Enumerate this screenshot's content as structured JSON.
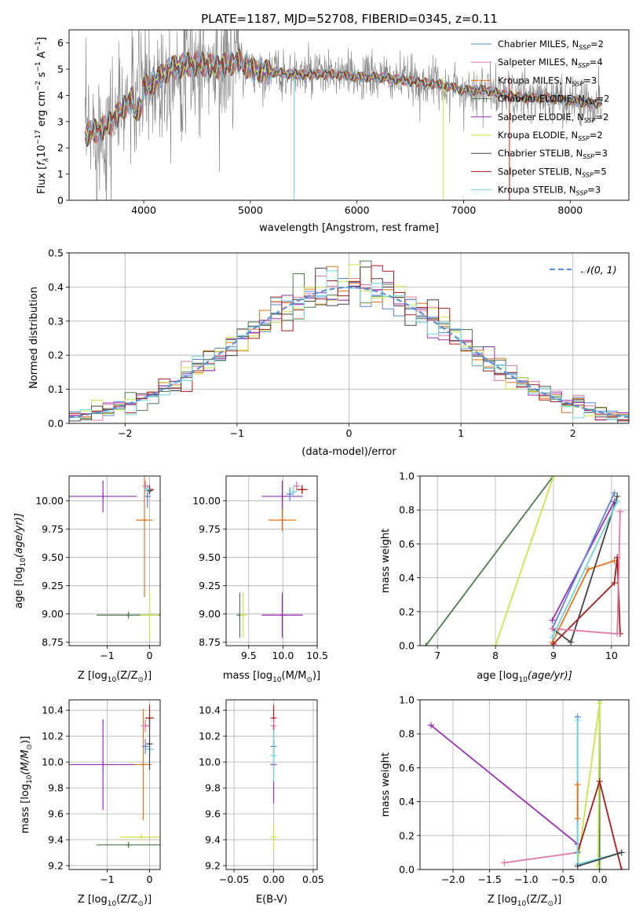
{
  "figure": {
    "title": "PLATE=1187, MJD=52708, FIBERID=0345, z=0.11"
  },
  "colors": {
    "Chabrier MILES": "#5b84d6",
    "Salpeter MILES": "#e377a8",
    "Kroupa MILES": "#e8751a",
    "Chabrier ELODIE": "#4f7a4f",
    "Salpeter ELODIE": "#9a2fb8",
    "Kroupa ELODIE": "#c8e64a",
    "Chabrier STELIB": "#444444",
    "Salpeter STELIB": "#a81c1c",
    "Kroupa STELIB": "#6fd6dc",
    "data": "#808080",
    "normal": "#5b8fd6"
  },
  "chart_data": [
    {
      "type": "line",
      "id": "spectrum",
      "xlabel": "wavelength [Angstrom, rest frame]",
      "ylabel_parts": [
        "Flux [",
        "f",
        "λ",
        "10",
        "−17",
        " erg cm",
        "−2",
        " s",
        "−1",
        " A",
        "−1",
        "]"
      ],
      "xlim": [
        3300,
        8550
      ],
      "ylim": [
        0,
        6.5
      ],
      "xticks": [
        4000,
        5000,
        6000,
        7000,
        8000
      ],
      "yticks": [
        0,
        1,
        2,
        3,
        4,
        5,
        6
      ],
      "legend_position": "top-right",
      "legend": [
        {
          "name": "Chabrier MILES",
          "n": "2"
        },
        {
          "name": "Salpeter MILES",
          "n": "4"
        },
        {
          "name": "Kroupa MILES",
          "n": "3"
        },
        {
          "name": "Chabrier ELODIE",
          "n": "2"
        },
        {
          "name": "Salpeter ELODIE",
          "n": "2"
        },
        {
          "name": "Kroupa ELODIE",
          "n": "2"
        },
        {
          "name": "Chabrier STELIB",
          "n": "3"
        },
        {
          "name": "Salpeter STELIB",
          "n": "5"
        },
        {
          "name": "Kroupa STELIB",
          "n": "3"
        }
      ],
      "nssp_label": "N",
      "nssp_sub": "SSP",
      "model_continuum": {
        "x": [
          3450,
          3600,
          3700,
          3800,
          3900,
          4000,
          4100,
          4200,
          4300,
          4500,
          4700,
          4900,
          5000,
          5200,
          5400,
          5600,
          5800,
          6000,
          6200,
          6400,
          6600,
          6800,
          7000,
          7200,
          7400,
          7600,
          7800,
          8000,
          8200,
          8300
        ],
        "y": [
          2.5,
          2.7,
          3.0,
          3.5,
          3.9,
          4.3,
          4.5,
          4.9,
          5.1,
          5.2,
          5.1,
          5.3,
          5.0,
          4.9,
          4.8,
          4.8,
          4.8,
          4.7,
          4.7,
          4.6,
          4.5,
          4.4,
          4.2,
          4.2,
          4.0,
          3.9,
          3.9,
          3.8,
          3.7,
          3.7
        ]
      }
    },
    {
      "type": "histogram",
      "id": "residuals",
      "xlabel": "(data-model)/error",
      "ylabel": "Normed distribution",
      "xlim": [
        -2.5,
        2.5
      ],
      "ylim": [
        0,
        0.5
      ],
      "xticks": [
        -2,
        -1,
        0,
        1,
        2
      ],
      "yticks": [
        0.0,
        0.1,
        0.2,
        0.3,
        0.4,
        0.5
      ],
      "bin_width": 0.1,
      "overlay_label": "𝒩(0, 1)",
      "overlay": "normal(0,1)"
    },
    {
      "type": "scatter",
      "id": "age_vs_Z",
      "xlabel_parts": [
        "Z [log",
        "10",
        "(Z/Z",
        "⊙",
        ")]"
      ],
      "ylabel_parts": [
        "age  [log",
        "10",
        "(age/yr)]"
      ],
      "xlim": [
        -1.9,
        0.25
      ],
      "ylim": [
        8.72,
        10.22
      ],
      "xticks": [
        -1,
        0
      ],
      "yticks": [
        8.75,
        9.0,
        9.25,
        9.5,
        9.75,
        10.0
      ],
      "points": [
        {
          "model": "Salpeter ELODIE",
          "x": -1.1,
          "xerr": 0.8,
          "y": 10.04,
          "yerr": 0.14
        },
        {
          "model": "Kroupa MILES",
          "x": -0.12,
          "xerr": 0.2,
          "y": 9.83,
          "yerr": 0.68
        },
        {
          "model": "Chabrier ELODIE",
          "x": -0.5,
          "xerr": 0.75,
          "y": 8.99,
          "yerr": 0.03
        },
        {
          "model": "Kroupa ELODIE",
          "x": 0.0,
          "xerr": 0.22,
          "y": 8.99,
          "yerr": 0.22
        },
        {
          "model": "Salpeter MILES",
          "x": -0.1,
          "xerr": 0.07,
          "y": 10.13,
          "yerr": 0.05
        },
        {
          "model": "Chabrier MILES",
          "x": -0.05,
          "xerr": 0.08,
          "y": 10.04,
          "yerr": 0.1
        },
        {
          "model": "Salpeter STELIB",
          "x": 0.0,
          "xerr": 0.1,
          "y": 10.1,
          "yerr": 0.04
        },
        {
          "model": "Chabrier STELIB",
          "x": 0.0,
          "xerr": 0.05,
          "y": 10.09,
          "yerr": 0.03
        },
        {
          "model": "Kroupa STELIB",
          "x": -0.06,
          "xerr": 0.05,
          "y": 10.1,
          "yerr": 0.03
        }
      ]
    },
    {
      "type": "scatter",
      "id": "age_vs_mass",
      "xlabel_parts": [
        "mass [log",
        "10",
        "(M/M",
        "⊙",
        ")]"
      ],
      "ylabel_parts": [],
      "xlim": [
        9.17,
        10.5
      ],
      "ylim": [
        8.72,
        10.22
      ],
      "xticks": [
        9.5,
        10.0,
        10.5
      ],
      "yticks": [
        8.75,
        9.0,
        9.25,
        9.5,
        9.75,
        10.0
      ],
      "points": [
        {
          "model": "Salpeter ELODIE",
          "x": 9.99,
          "xerr": 0.3,
          "y": 10.04,
          "yerr": 0.14
        },
        {
          "model": "Kroupa MILES",
          "x": 9.99,
          "xerr": 0.2,
          "y": 9.83,
          "yerr": 0.1
        },
        {
          "model": "Chabrier ELODIE",
          "x": 9.37,
          "xerr": 0.02,
          "y": 8.99,
          "yerr": 0.2
        },
        {
          "model": "Kroupa ELODIE",
          "x": 9.42,
          "xerr": 0.02,
          "y": 8.99,
          "yerr": 0.2
        },
        {
          "model": "Salpeter ELODIE",
          "x": 9.99,
          "xerr": 0.3,
          "y": 8.99,
          "yerr": 0.2
        },
        {
          "model": "Salpeter MILES",
          "x": 10.2,
          "xerr": 0.05,
          "y": 10.13,
          "yerr": 0.04
        },
        {
          "model": "Chabrier MILES",
          "x": 10.1,
          "xerr": 0.05,
          "y": 10.06,
          "yerr": 0.06
        },
        {
          "model": "Salpeter STELIB",
          "x": 10.28,
          "xerr": 0.08,
          "y": 10.1,
          "yerr": 0.04
        },
        {
          "model": "Kroupa STELIB",
          "x": 10.15,
          "xerr": 0.05,
          "y": 10.08,
          "yerr": 0.05
        }
      ]
    },
    {
      "type": "line",
      "id": "massweight_vs_age",
      "xlabel_parts": [
        "age  [log",
        "10",
        "(age/yr)]"
      ],
      "ylabel": "mass weight",
      "xlim": [
        6.7,
        10.3
      ],
      "ylim": [
        0,
        1.0
      ],
      "xticks": [
        7,
        8,
        9,
        10
      ],
      "yticks": [
        0.0,
        0.2,
        0.4,
        0.6,
        0.8,
        1.0
      ],
      "series": [
        {
          "model": "Chabrier ELODIE",
          "x": [
            6.8,
            9.0
          ],
          "y": [
            0.0,
            1.0
          ]
        },
        {
          "model": "Kroupa ELODIE",
          "x": [
            8.0,
            9.0
          ],
          "y": [
            0.0,
            1.0
          ]
        },
        {
          "model": "Salpeter ELODIE",
          "x": [
            8.98,
            10.05
          ],
          "y": [
            0.15,
            0.85
          ]
        },
        {
          "model": "Chabrier MILES",
          "x": [
            8.98,
            10.05
          ],
          "y": [
            0.1,
            0.9
          ]
        },
        {
          "model": "Kroupa MILES",
          "x": [
            8.98,
            9.6,
            10.05
          ],
          "y": [
            0.02,
            0.45,
            0.5
          ]
        },
        {
          "model": "Chabrier STELIB",
          "x": [
            8.98,
            9.3,
            10.1
          ],
          "y": [
            0.1,
            0.02,
            0.88
          ]
        },
        {
          "model": "Salpeter STELIB",
          "x": [
            9.0,
            10.05,
            10.1,
            10.15
          ],
          "y": [
            0.01,
            0.37,
            0.52,
            0.07
          ]
        },
        {
          "model": "Salpeter MILES",
          "x": [
            8.98,
            10.1,
            10.15
          ],
          "y": [
            0.1,
            0.07,
            0.79
          ]
        },
        {
          "model": "Kroupa STELIB",
          "x": [
            8.98,
            10.1
          ],
          "y": [
            0.05,
            0.85
          ]
        }
      ]
    },
    {
      "type": "scatter",
      "id": "mass_vs_Z",
      "xlabel_parts": [
        "Z [log",
        "10",
        "(Z/Z",
        "⊙",
        ")]"
      ],
      "ylabel_parts": [
        "mass [log",
        "10",
        "(M/M",
        "⊙",
        ")]"
      ],
      "xlim": [
        -1.9,
        0.25
      ],
      "ylim": [
        9.17,
        10.48
      ],
      "xticks": [
        -1,
        0
      ],
      "yticks": [
        9.2,
        9.4,
        9.6,
        9.8,
        10.0,
        10.2,
        10.4
      ],
      "points": [
        {
          "model": "Salpeter ELODIE",
          "x": -1.1,
          "xerr": 0.8,
          "y": 9.98,
          "yerr": 0.35
        },
        {
          "model": "Kroupa MILES",
          "x": -0.15,
          "xerr": 0.2,
          "y": 9.98,
          "yerr": 0.43
        },
        {
          "model": "Chabrier ELODIE",
          "x": -0.5,
          "xerr": 0.75,
          "y": 9.36,
          "yerr": 0.02
        },
        {
          "model": "Kroupa ELODIE",
          "x": -0.2,
          "xerr": 0.5,
          "y": 9.42,
          "yerr": 0.02
        },
        {
          "model": "Salpeter MILES",
          "x": -0.1,
          "xerr": 0.1,
          "y": 10.28,
          "yerr": 0.05
        },
        {
          "model": "Salpeter STELIB",
          "x": 0.0,
          "xerr": 0.1,
          "y": 10.34,
          "yerr": 0.1
        },
        {
          "model": "Chabrier MILES",
          "x": -0.1,
          "xerr": 0.05,
          "y": 10.12,
          "yerr": 0.06
        },
        {
          "model": "Kroupa STELIB",
          "x": 0.0,
          "xerr": 0.1,
          "y": 10.1,
          "yerr": 0.05
        },
        {
          "model": "Chabrier STELIB",
          "x": 0.0,
          "xerr": 0.05,
          "y": 10.14,
          "yerr": 0.2
        }
      ]
    },
    {
      "type": "scatter",
      "id": "mass_vs_ebv",
      "xlabel": "E(B-V)",
      "xlim": [
        -0.06,
        0.055
      ],
      "ylim": [
        9.17,
        10.48
      ],
      "xticks": [
        -0.05,
        0.0,
        0.05
      ],
      "xtick_labels": [
        "−0.05",
        "0.00",
        "0.05"
      ],
      "yticks": [
        9.2,
        9.4,
        9.6,
        9.8,
        10.0,
        10.2,
        10.4
      ],
      "points": [
        {
          "model": "Salpeter STELIB",
          "x": 0.0,
          "y": 10.34,
          "yerr": 0.1
        },
        {
          "model": "Salpeter MILES",
          "x": 0.0,
          "y": 10.28,
          "yerr": 0.05
        },
        {
          "model": "Chabrier MILES",
          "x": 0.0,
          "y": 10.12,
          "yerr": 0.06
        },
        {
          "model": "Salpeter ELODIE",
          "x": 0.0,
          "y": 9.98,
          "yerr": 0.3
        },
        {
          "model": "Kroupa STELIB",
          "x": 0.0,
          "y": 10.05,
          "yerr": 0.2
        },
        {
          "model": "Kroupa ELODIE",
          "x": 0.0,
          "y": 9.42,
          "yerr": 0.1
        }
      ]
    },
    {
      "type": "line",
      "id": "massweight_vs_Z",
      "xlabel_parts": [
        "Z [log",
        "10",
        "(Z/Z",
        "⊙",
        ")]"
      ],
      "ylabel": "mass weight",
      "xlim": [
        -2.45,
        0.4
      ],
      "ylim": [
        0,
        1.0
      ],
      "xticks": [
        -2.0,
        -1.5,
        -1.0,
        -0.5,
        0.0
      ],
      "xtick_labels": [
        "−2.0",
        "−1.5",
        "−1.0",
        "−0.5",
        "0.0"
      ],
      "yticks": [
        0.0,
        0.2,
        0.4,
        0.6,
        0.8,
        1.0
      ],
      "series": [
        {
          "model": "Salpeter ELODIE",
          "x": [
            -2.3,
            -0.3
          ],
          "y": [
            0.85,
            0.15
          ]
        },
        {
          "model": "Salpeter MILES",
          "x": [
            -1.3,
            -0.3
          ],
          "y": [
            0.04,
            0.1
          ]
        },
        {
          "model": "Chabrier ELODIE",
          "x": [
            0.0,
            0.0
          ],
          "y": [
            0.0,
            1.0
          ]
        },
        {
          "model": "Kroupa ELODIE",
          "x": [
            -0.3,
            0.0,
            -0.02
          ],
          "y": [
            0.03,
            0.98,
            0.02
          ]
        },
        {
          "model": "Salpeter STELIB",
          "x": [
            -0.3,
            0.0,
            0.3
          ],
          "y": [
            0.1,
            0.52,
            0.0
          ]
        },
        {
          "model": "Chabrier MILES",
          "x": [
            -0.3,
            -0.3
          ],
          "y": [
            0.1,
            0.9
          ]
        },
        {
          "model": "Kroupa STELIB",
          "x": [
            -0.3,
            -0.3,
            0.3
          ],
          "y": [
            0.88,
            0.03,
            0.1
          ]
        },
        {
          "model": "Chabrier STELIB",
          "x": [
            -0.3,
            0.3
          ],
          "y": [
            0.02,
            0.1
          ]
        },
        {
          "model": "Kroupa MILES",
          "x": [
            -0.3,
            -0.3
          ],
          "y": [
            0.3,
            0.5
          ]
        }
      ]
    }
  ]
}
